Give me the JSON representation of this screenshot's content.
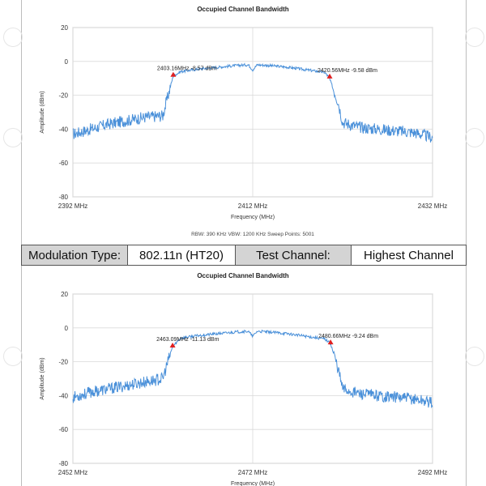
{
  "table": {
    "modulation_label": "Modulation Type:",
    "modulation_value": "802.11n (HT20)",
    "channel_label": "Test Channel:",
    "channel_value": "Highest Channel"
  },
  "colors": {
    "trace": "#4a90d9",
    "marker": "#e02020",
    "grid": "#d9d9d9",
    "table_shade": "#d4d4d4"
  },
  "chart_data": [
    {
      "type": "line",
      "title": "Occupied Channel Bandwidth",
      "xlabel": "Frequency (MHz)",
      "ylabel": "Amplitude (dBm)",
      "xlim": [
        2392,
        2432
      ],
      "ylim": [
        -80,
        20
      ],
      "x_ticks": [
        "2392 MHz",
        "2412 MHz",
        "2432 MHz"
      ],
      "y_ticks": [
        "20",
        "0",
        "-20",
        "-40",
        "-60",
        "-80"
      ],
      "footer": "RBW: 390 KHz    VBW: 1200 KHz    Sweep Points: 5001",
      "grid": true,
      "series": [
        {
          "x": [
            2392,
            2394,
            2396,
            2398,
            2400,
            2402,
            2403.16,
            2404,
            2406,
            2408,
            2410,
            2411.5,
            2412,
            2412.5,
            2414,
            2416,
            2418,
            2420,
            2420.5,
            2421.5,
            2422,
            2424,
            2426,
            2428,
            2430,
            2432
          ],
          "y": [
            -43,
            -40,
            -37,
            -35,
            -33,
            -32,
            -8.57,
            -6,
            -4.5,
            -3.5,
            -2.5,
            -2,
            -5,
            -2,
            -2.5,
            -3.5,
            -5,
            -6.5,
            -9.58,
            -24,
            -36,
            -39,
            -40,
            -41,
            -42,
            -45
          ]
        }
      ],
      "markers": [
        {
          "x": 2403.16,
          "y": -8.57,
          "label": "2403.16MHz -8.57 dBm"
        },
        {
          "x": 2420.56,
          "y": -9.58,
          "label": "2420.56MHz -9.58 dBm"
        }
      ]
    },
    {
      "type": "line",
      "title": "Occupied Channel Bandwidth",
      "xlabel": "Frequency (MHz)",
      "ylabel": "Amplitude (dBm)",
      "xlim": [
        2452,
        2492
      ],
      "ylim": [
        -80,
        20
      ],
      "x_ticks": [
        "2452 MHz",
        "2472 MHz",
        "2492 MHz"
      ],
      "y_ticks": [
        "20",
        "0",
        "-20",
        "-40",
        "-60",
        "-80"
      ],
      "grid": true,
      "series": [
        {
          "x": [
            2452,
            2454,
            2456,
            2458,
            2460,
            2462,
            2463.09,
            2464,
            2466,
            2468,
            2470,
            2471.5,
            2472,
            2472.5,
            2474,
            2476,
            2478,
            2480,
            2480.66,
            2481.5,
            2482,
            2484,
            2486,
            2488,
            2490,
            2492
          ],
          "y": [
            -41,
            -38,
            -36,
            -34,
            -32,
            -30,
            -11.13,
            -6,
            -4.5,
            -3.5,
            -2.5,
            -2,
            -5,
            -2,
            -2.5,
            -3.5,
            -5,
            -6.5,
            -9.24,
            -24,
            -36,
            -39,
            -40,
            -41,
            -42,
            -44
          ]
        }
      ],
      "markers": [
        {
          "x": 2463.09,
          "y": -11.13,
          "label": "2463.09MHz -11.13 dBm"
        },
        {
          "x": 2480.66,
          "y": -9.24,
          "label": "2480.66MHz -9.24 dBm"
        }
      ]
    }
  ]
}
